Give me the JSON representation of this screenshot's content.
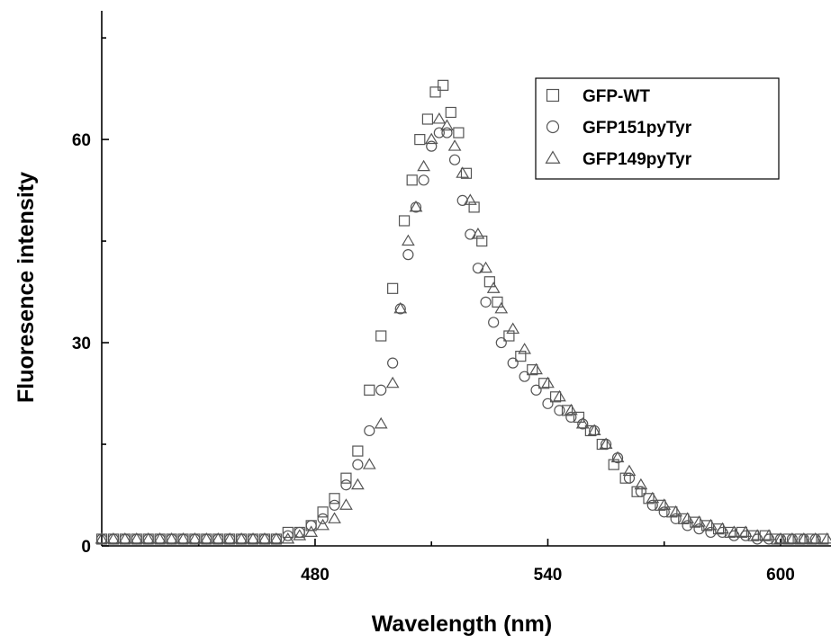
{
  "chart_data": {
    "type": "scatter",
    "title": "",
    "xlabel": "Wavelength (nm)",
    "ylabel": "Fluoresence intensity",
    "xlim": [
      425,
      613
    ],
    "ylim": [
      0,
      79
    ],
    "xticks": [
      480,
      540,
      600
    ],
    "yticks": [
      0,
      30,
      60
    ],
    "legend_position": "top-right",
    "grid": false,
    "series": [
      {
        "name": "GFP-WT",
        "marker": "square",
        "x": [
          425,
          428,
          431,
          434,
          437,
          440,
          443,
          446,
          449,
          452,
          455,
          458,
          461,
          464,
          467,
          470,
          473,
          476,
          479,
          482,
          485,
          488,
          491,
          494,
          497,
          500,
          503,
          505,
          507,
          509,
          511,
          513,
          515,
          517,
          519,
          521,
          523,
          525,
          527,
          530,
          533,
          536,
          539,
          542,
          545,
          548,
          551,
          554,
          557,
          560,
          563,
          566,
          569,
          572,
          575,
          578,
          581,
          584,
          587,
          590,
          593,
          596,
          599,
          602,
          605,
          608,
          611
        ],
        "values": [
          1,
          1,
          1,
          1,
          1,
          1,
          1,
          1,
          1,
          1,
          1,
          1,
          1,
          1,
          1,
          1,
          2,
          2,
          3,
          5,
          7,
          10,
          14,
          23,
          31,
          38,
          48,
          54,
          60,
          63,
          67,
          68,
          64,
          61,
          55,
          50,
          45,
          39,
          36,
          31,
          28,
          26,
          24,
          22,
          20,
          19,
          17,
          15,
          12,
          10,
          8,
          7,
          6,
          5,
          4,
          3.5,
          3,
          2.5,
          2,
          2,
          1.5,
          1.5,
          1,
          1,
          1,
          1,
          1
        ]
      },
      {
        "name": "GFP151pyTyr",
        "marker": "circle",
        "x": [
          425,
          428,
          431,
          434,
          437,
          440,
          443,
          446,
          449,
          452,
          455,
          458,
          461,
          464,
          467,
          470,
          473,
          476,
          479,
          482,
          485,
          488,
          491,
          494,
          497,
          500,
          502,
          504,
          506,
          508,
          510,
          512,
          514,
          516,
          518,
          520,
          522,
          524,
          526,
          528,
          531,
          534,
          537,
          540,
          543,
          546,
          549,
          552,
          555,
          558,
          561,
          564,
          567,
          570,
          573,
          576,
          579,
          582,
          585,
          588,
          591,
          594,
          597,
          600,
          603,
          606,
          609
        ],
        "values": [
          1,
          1,
          1,
          1,
          1,
          1,
          1,
          1,
          1,
          1,
          1,
          1,
          1,
          1,
          1,
          1,
          1.5,
          2,
          3,
          4,
          6,
          9,
          12,
          17,
          23,
          27,
          35,
          43,
          50,
          54,
          59,
          61,
          61,
          57,
          51,
          46,
          41,
          36,
          33,
          30,
          27,
          25,
          23,
          21,
          20,
          19,
          18,
          17,
          15,
          13,
          10,
          8,
          6,
          5,
          4,
          3,
          2.5,
          2,
          2,
          1.5,
          1.5,
          1,
          1,
          1,
          1,
          1,
          1
        ]
      },
      {
        "name": "GFP149pyTyr",
        "marker": "triangle",
        "x": [
          425,
          428,
          431,
          434,
          437,
          440,
          443,
          446,
          449,
          452,
          455,
          458,
          461,
          464,
          467,
          470,
          473,
          476,
          479,
          482,
          485,
          488,
          491,
          494,
          497,
          500,
          502,
          504,
          506,
          508,
          510,
          512,
          514,
          516,
          518,
          520,
          522,
          524,
          526,
          528,
          531,
          534,
          537,
          540,
          543,
          546,
          549,
          552,
          555,
          558,
          561,
          564,
          567,
          570,
          573,
          576,
          579,
          582,
          585,
          588,
          591,
          594,
          597,
          600,
          603,
          606,
          609,
          612
        ],
        "values": [
          1,
          1,
          1,
          1,
          1,
          1,
          1,
          1,
          1,
          1,
          1,
          1,
          1,
          1,
          1,
          1,
          1,
          1.5,
          2,
          3,
          4,
          6,
          9,
          12,
          18,
          24,
          35,
          45,
          50,
          56,
          60,
          63,
          62,
          59,
          55,
          51,
          46,
          41,
          38,
          35,
          32,
          29,
          26,
          24,
          22,
          20,
          18,
          17,
          15,
          13,
          11,
          9,
          7,
          6,
          5,
          4,
          3.5,
          3,
          2.5,
          2,
          2,
          1.5,
          1.5,
          1,
          1,
          1,
          1,
          1
        ]
      }
    ]
  }
}
